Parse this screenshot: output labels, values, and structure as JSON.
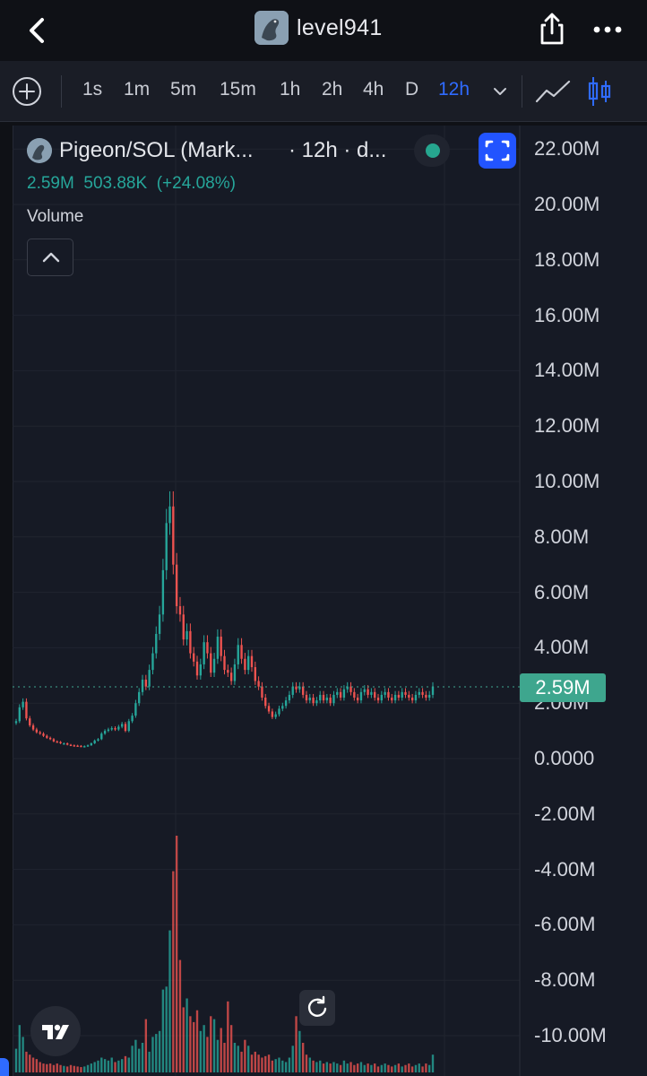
{
  "header": {
    "username": "level941",
    "back_icon": "chevron-left-icon",
    "share_icon": "share-icon",
    "more_icon": "ellipsis-icon"
  },
  "toolbar": {
    "intervals": [
      "1s",
      "1m",
      "5m",
      "15m",
      "1h",
      "2h",
      "4h",
      "D",
      "12h"
    ],
    "active_interval": "12h",
    "accent": "#2f6bff"
  },
  "legend": {
    "symbol": "Pigeon/SOL (Mark...",
    "meta": "· 12h · d...",
    "last_value": "2.59M",
    "change": "503.88K",
    "change_pct": "(+24.08%)",
    "indicator": "Volume"
  },
  "price_tag": "2.59M",
  "colors": {
    "up": "#26a69a",
    "down": "#ef5350",
    "background": "#161a25"
  },
  "chart_data": {
    "type": "candlestick",
    "y_axis_labels": [
      "22.00M",
      "20.00M",
      "18.00M",
      "16.00M",
      "14.00M",
      "12.00M",
      "10.00M",
      "8.00M",
      "6.00M",
      "4.00M",
      "2.00M",
      "0.0000",
      "-2.00M",
      "-4.00M",
      "-6.00M",
      "-8.00M",
      "-10.00M"
    ],
    "ylim": [
      -10000000,
      22000000
    ],
    "last_price": 2590000,
    "interval": "12h",
    "close_series": [
      1.35,
      1.85,
      2.05,
      1.45,
      1.2,
      1.05,
      0.95,
      0.9,
      0.82,
      0.75,
      0.7,
      0.62,
      0.6,
      0.55,
      0.55,
      0.5,
      0.48,
      0.47,
      0.46,
      0.45,
      0.45,
      0.48,
      0.55,
      0.65,
      0.7,
      0.9,
      1.0,
      1.05,
      1.1,
      1.05,
      1.15,
      1.25,
      1.0,
      1.35,
      1.55,
      2.0,
      2.4,
      2.85,
      2.6,
      3.2,
      3.8,
      4.5,
      5.2,
      6.8,
      8.5,
      9.1,
      7.0,
      5.5,
      5.2,
      4.3,
      4.6,
      3.8,
      3.5,
      3.0,
      3.4,
      4.2,
      3.8,
      3.1,
      3.6,
      4.4,
      3.7,
      3.2,
      3.1,
      2.8,
      3.4,
      4.1,
      3.6,
      3.2,
      3.7,
      3.3,
      2.8,
      2.6,
      2.2,
      1.9,
      1.7,
      1.5,
      1.6,
      1.8,
      1.9,
      2.1,
      2.3,
      2.6,
      2.5,
      2.6,
      2.3,
      2.1,
      2.2,
      2.0,
      2.1,
      2.3,
      2.1,
      2.2,
      2.0,
      2.3,
      2.4,
      2.2,
      2.5,
      2.6,
      2.4,
      2.2,
      2.1,
      2.4,
      2.5,
      2.3,
      2.4,
      2.2,
      2.1,
      2.3,
      2.4,
      2.2,
      2.1,
      2.3,
      2.2,
      2.4,
      2.3,
      2.2,
      2.1,
      2.3,
      2.4,
      2.3,
      2.2,
      2.3,
      2.6
    ],
    "volume_series": [
      0.8,
      1.6,
      1.2,
      0.7,
      0.6,
      0.5,
      0.45,
      0.35,
      0.3,
      0.28,
      0.3,
      0.25,
      0.3,
      0.25,
      0.22,
      0.2,
      0.25,
      0.22,
      0.2,
      0.18,
      0.2,
      0.25,
      0.3,
      0.35,
      0.4,
      0.5,
      0.45,
      0.4,
      0.5,
      0.35,
      0.4,
      0.45,
      0.55,
      0.5,
      0.9,
      1.1,
      0.8,
      1.0,
      1.8,
      0.7,
      1.2,
      1.3,
      1.4,
      2.8,
      2.9,
      4.8,
      6.8,
      8.0,
      3.8,
      2.2,
      2.5,
      1.9,
      1.7,
      2.1,
      1.4,
      1.6,
      1.2,
      1.9,
      1.8,
      1.1,
      1.5,
      1.0,
      2.4,
      1.6,
      1.0,
      0.9,
      0.7,
      1.1,
      0.9,
      0.6,
      0.7,
      0.6,
      0.5,
      0.55,
      0.6,
      0.4,
      0.45,
      0.5,
      0.4,
      0.35,
      0.5,
      0.9,
      1.9,
      1.4,
      1.0,
      0.6,
      0.5,
      0.4,
      0.35,
      0.4,
      0.3,
      0.35,
      0.3,
      0.35,
      0.3,
      0.25,
      0.4,
      0.3,
      0.35,
      0.25,
      0.3,
      0.35,
      0.25,
      0.3,
      0.25,
      0.3,
      0.2,
      0.25,
      0.3,
      0.25,
      0.2,
      0.25,
      0.3,
      0.2,
      0.25,
      0.3,
      0.2,
      0.25,
      0.3,
      0.2,
      0.3,
      0.25,
      0.6
    ]
  },
  "icons": {
    "plus": "plus-circle-icon",
    "line": "line-chart-icon",
    "candle": "candlestick-icon",
    "fullscreen": "fullscreen-icon",
    "reset": "reset-icon",
    "logo": "tradingview-logo-icon"
  }
}
